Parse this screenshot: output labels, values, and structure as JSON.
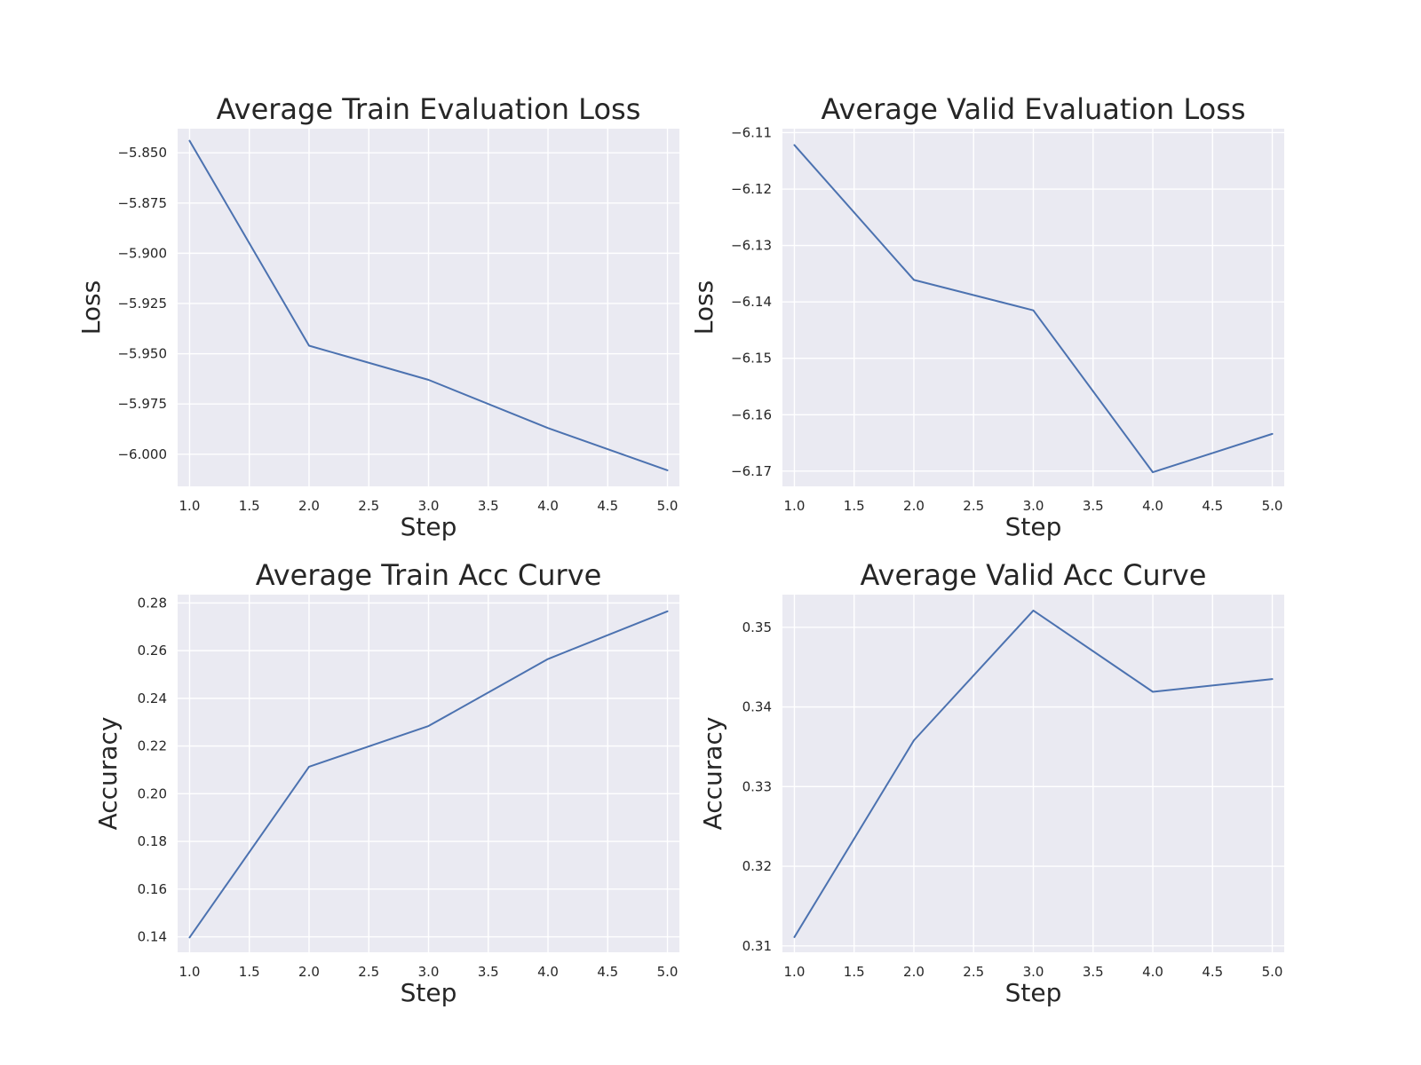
{
  "colors": {
    "plot_background": "#eaeaf2",
    "grid": "#ffffff",
    "line": "#4c72b0",
    "text": "#262626"
  },
  "chart_data": [
    {
      "type": "line",
      "title": "Average Train Evaluation Loss",
      "xlabel": "Step",
      "ylabel": "Loss",
      "grid": true,
      "xlim": [
        0.9,
        5.1
      ],
      "ylim": [
        -6.016,
        -5.838
      ],
      "xticks": [
        1.0,
        1.5,
        2.0,
        2.5,
        3.0,
        3.5,
        4.0,
        4.5,
        5.0
      ],
      "xtick_labels": [
        "1.0",
        "1.5",
        "2.0",
        "2.5",
        "3.0",
        "3.5",
        "4.0",
        "4.5",
        "5.0"
      ],
      "yticks": [
        -5.85,
        -5.875,
        -5.9,
        -5.925,
        -5.95,
        -5.975,
        -6.0
      ],
      "ytick_labels": [
        "−5.850",
        "−5.875",
        "−5.900",
        "−5.925",
        "−5.950",
        "−5.975",
        "−6.000"
      ],
      "series": [
        {
          "x": [
            1,
            2,
            3,
            4,
            5
          ],
          "y": [
            -5.844,
            -5.946,
            -5.963,
            -5.987,
            -6.008
          ]
        }
      ]
    },
    {
      "type": "line",
      "title": "Average Valid Evaluation Loss",
      "xlabel": "Step",
      "ylabel": "Loss",
      "grid": true,
      "xlim": [
        0.9,
        5.1
      ],
      "ylim": [
        -6.1727,
        -6.1093
      ],
      "xticks": [
        1.0,
        1.5,
        2.0,
        2.5,
        3.0,
        3.5,
        4.0,
        4.5,
        5.0
      ],
      "xtick_labels": [
        "1.0",
        "1.5",
        "2.0",
        "2.5",
        "3.0",
        "3.5",
        "4.0",
        "4.5",
        "5.0"
      ],
      "yticks": [
        -6.11,
        -6.12,
        -6.13,
        -6.14,
        -6.15,
        -6.16,
        -6.17
      ],
      "ytick_labels": [
        "−6.11",
        "−6.12",
        "−6.13",
        "−6.14",
        "−6.15",
        "−6.16",
        "−6.17"
      ],
      "series": [
        {
          "x": [
            1,
            2,
            3,
            4,
            5
          ],
          "y": [
            -6.1122,
            -6.1361,
            -6.1415,
            -6.1702,
            -6.1634
          ]
        }
      ]
    },
    {
      "type": "line",
      "title": "Average Train Acc Curve",
      "xlabel": "Step",
      "ylabel": "Accuracy",
      "grid": true,
      "xlim": [
        0.9,
        5.1
      ],
      "ylim": [
        0.1335,
        0.2835
      ],
      "xticks": [
        1.0,
        1.5,
        2.0,
        2.5,
        3.0,
        3.5,
        4.0,
        4.5,
        5.0
      ],
      "xtick_labels": [
        "1.0",
        "1.5",
        "2.0",
        "2.5",
        "3.0",
        "3.5",
        "4.0",
        "4.5",
        "5.0"
      ],
      "yticks": [
        0.14,
        0.16,
        0.18,
        0.2,
        0.22,
        0.24,
        0.26,
        0.28
      ],
      "ytick_labels": [
        "0.14",
        "0.16",
        "0.18",
        "0.20",
        "0.22",
        "0.24",
        "0.26",
        "0.28"
      ],
      "series": [
        {
          "x": [
            1,
            2,
            3,
            4,
            5
          ],
          "y": [
            0.1397,
            0.2113,
            0.2284,
            0.2565,
            0.2765
          ]
        }
      ]
    },
    {
      "type": "line",
      "title": "Average Valid Acc Curve",
      "xlabel": "Step",
      "ylabel": "Accuracy",
      "grid": true,
      "xlim": [
        0.9,
        5.1
      ],
      "ylim": [
        0.3092,
        0.3541
      ],
      "xticks": [
        1.0,
        1.5,
        2.0,
        2.5,
        3.0,
        3.5,
        4.0,
        4.5,
        5.0
      ],
      "xtick_labels": [
        "1.0",
        "1.5",
        "2.0",
        "2.5",
        "3.0",
        "3.5",
        "4.0",
        "4.5",
        "5.0"
      ],
      "yticks": [
        0.31,
        0.32,
        0.33,
        0.34,
        0.35
      ],
      "ytick_labels": [
        "0.31",
        "0.32",
        "0.33",
        "0.34",
        "0.35"
      ],
      "series": [
        {
          "x": [
            1,
            2,
            3,
            4,
            5
          ],
          "y": [
            0.3111,
            0.3358,
            0.3521,
            0.3419,
            0.3435
          ]
        }
      ]
    }
  ]
}
